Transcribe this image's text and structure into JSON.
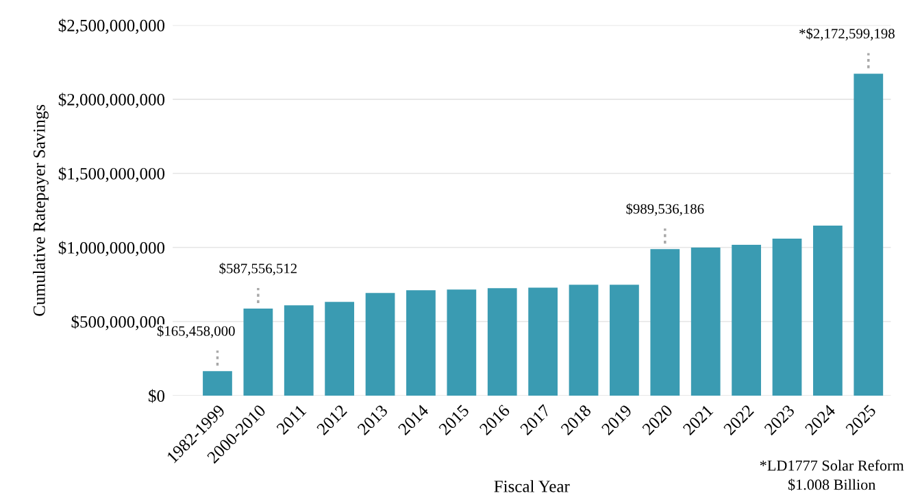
{
  "chart_data": {
    "type": "bar",
    "xlabel": "Fiscal Year",
    "ylabel": "Cumulative Ratepayer Savings",
    "categories": [
      "1982-1999",
      "2000-2010",
      "2011",
      "2012",
      "2013",
      "2014",
      "2015",
      "2016",
      "2017",
      "2018",
      "2019",
      "2020",
      "2021",
      "2022",
      "2023",
      "2024",
      "2025"
    ],
    "values": [
      165458000,
      587556512,
      610000000,
      633000000,
      693000000,
      711000000,
      716000000,
      725000000,
      729000000,
      748000000,
      748000000,
      989536186,
      1000000000,
      1018000000,
      1060000000,
      1147000000,
      2172599198
    ],
    "value_labels": [
      "$165,458,000",
      "$587,556,512",
      null,
      null,
      null,
      null,
      null,
      null,
      null,
      null,
      null,
      "$989,536,186",
      null,
      null,
      null,
      null,
      "*$2,172,599,198"
    ],
    "color": "#3a9bb2",
    "ylim": [
      0,
      2500000000
    ],
    "yticks": [
      {
        "value": 0,
        "label": "$0"
      },
      {
        "value": 500000000,
        "label": "$500,000,000"
      },
      {
        "value": 1000000000,
        "label": "$1,000,000,000"
      },
      {
        "value": 1500000000,
        "label": "$1,500,000,000"
      },
      {
        "value": 2000000000,
        "label": "$2,000,000,000"
      },
      {
        "value": 2500000000,
        "label": "$2,500,000,000"
      }
    ],
    "grid": "y",
    "annotations": [
      "*LD1777 Solar Reform\n$1.008 Billion"
    ]
  }
}
